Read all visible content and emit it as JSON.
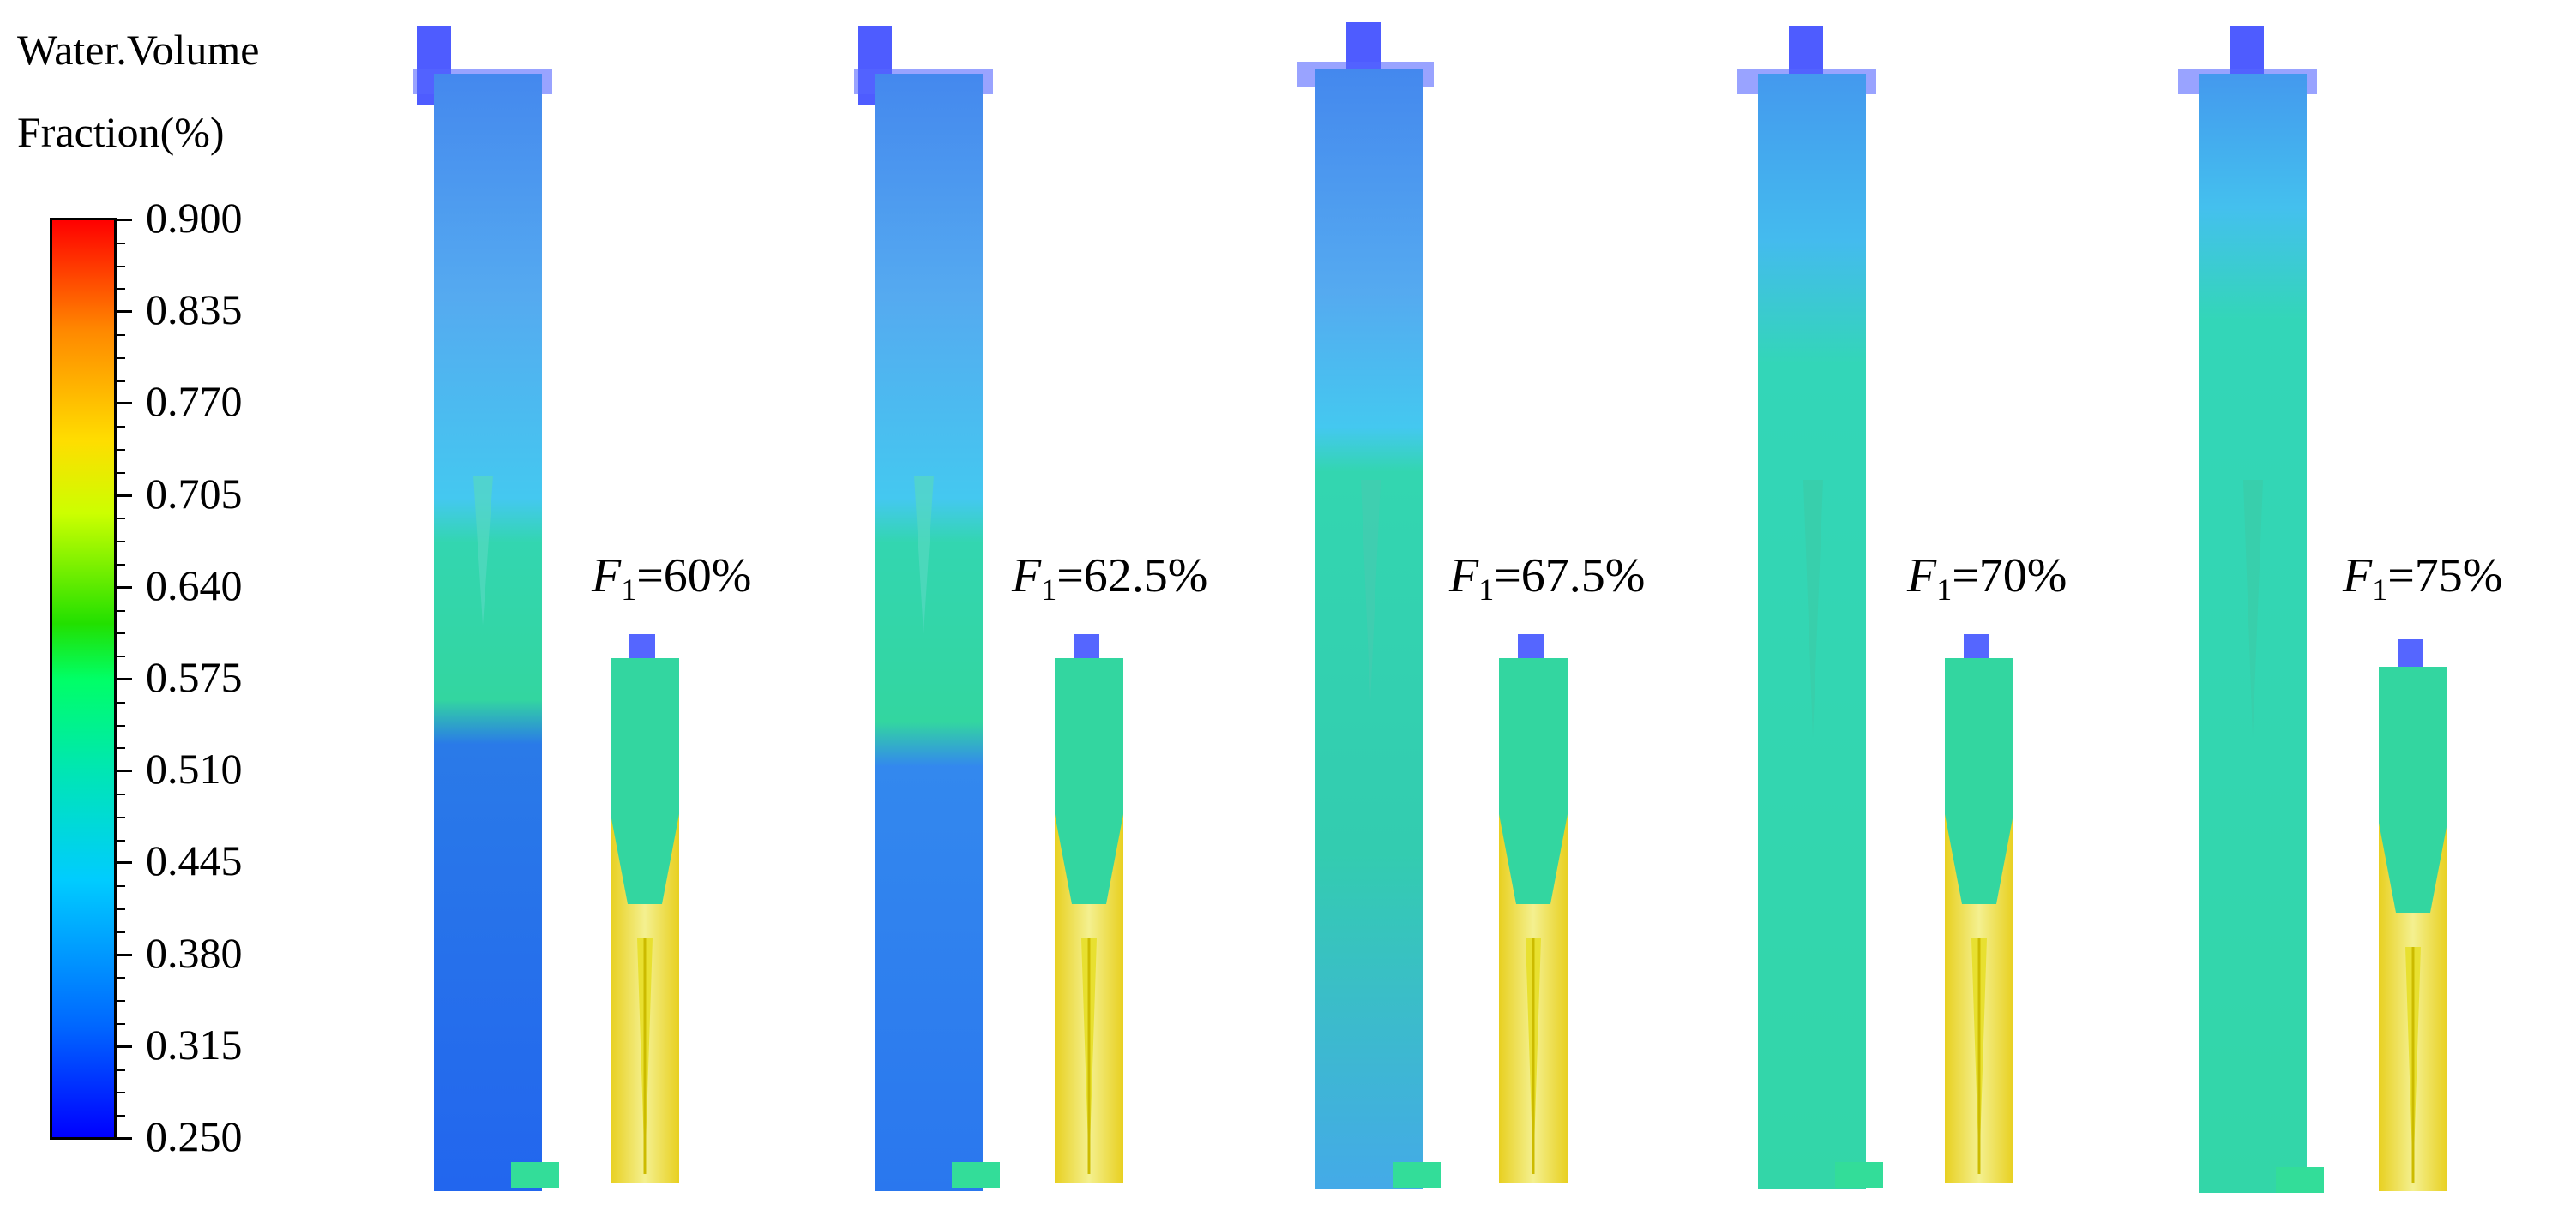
{
  "legend": {
    "title_line1": "Water.Volume",
    "title_line2": "Fraction(%)",
    "ticks": [
      "0.900",
      "0.835",
      "0.770",
      "0.705",
      "0.640",
      "0.575",
      "0.510",
      "0.445",
      "0.380",
      "0.315",
      "0.250"
    ],
    "colors": [
      "#0000ff",
      "#00ccff",
      "#00ff66",
      "#ffdd00",
      "#ff0000"
    ]
  },
  "cases": [
    {
      "symbol": "F",
      "sub": "1",
      "value": "=60%"
    },
    {
      "symbol": "F",
      "sub": "1",
      "value": "=62.5%"
    },
    {
      "symbol": "F",
      "sub": "1",
      "value": "=67.5%"
    },
    {
      "symbol": "F",
      "sub": "1",
      "value": "=70%"
    },
    {
      "symbol": "F",
      "sub": "1",
      "value": "=75%"
    }
  ]
}
